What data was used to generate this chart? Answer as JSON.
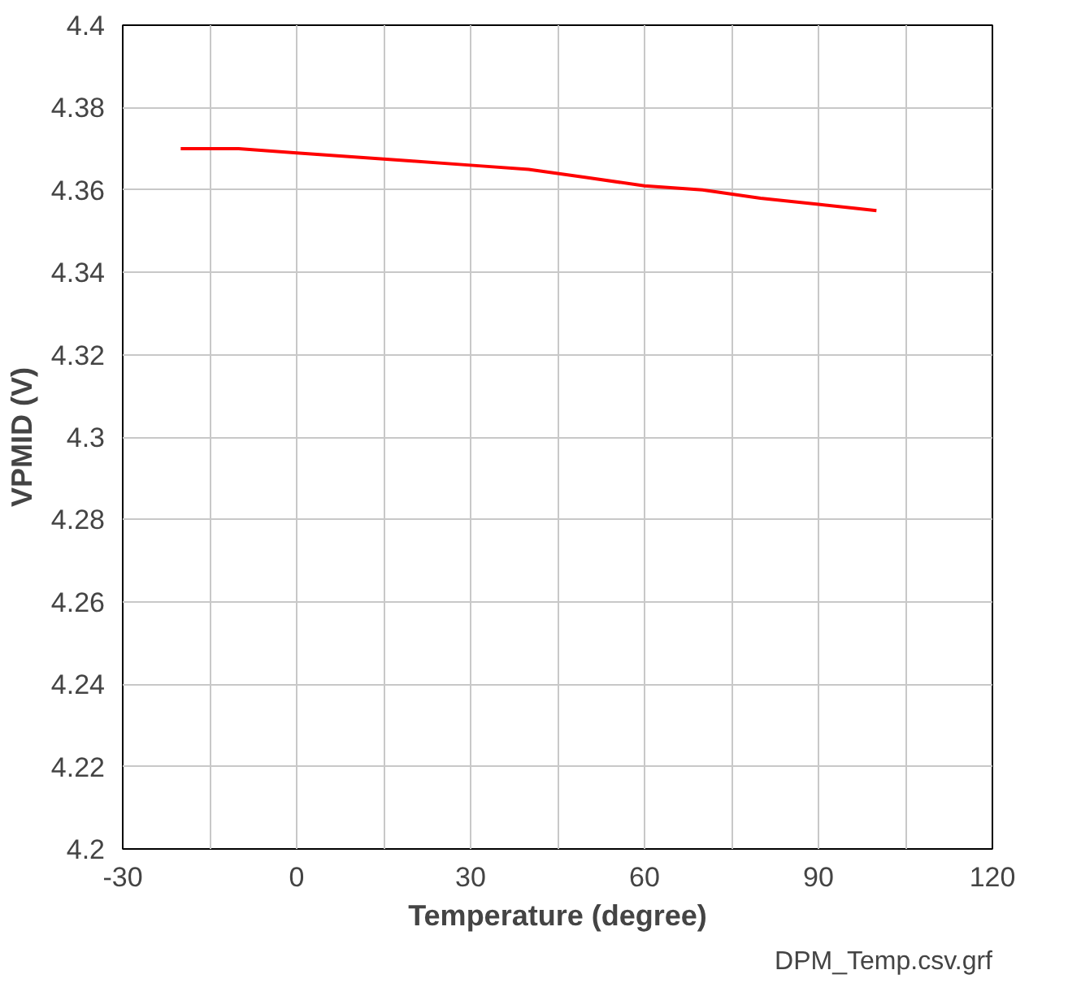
{
  "chart_data": {
    "type": "line",
    "xlabel": "Temperature (degree)",
    "ylabel": "VPMID (V)",
    "x": [
      -20,
      -10,
      0,
      10,
      20,
      30,
      40,
      50,
      60,
      70,
      80,
      90,
      100
    ],
    "series": [
      {
        "color": "#ff0000",
        "values": [
          4.37,
          4.37,
          4.369,
          4.368,
          4.367,
          4.366,
          4.365,
          4.363,
          4.361,
          4.36,
          4.358,
          4.3565,
          4.355
        ]
      }
    ],
    "xlim": [
      -30,
      120
    ],
    "xticks": [
      -30,
      {
        "value": -15,
        "label": null
      },
      0,
      {
        "value": 15,
        "label": null
      },
      30,
      {
        "value": 45,
        "label": null
      },
      60,
      {
        "value": 75,
        "label": null
      },
      90,
      {
        "value": 105,
        "label": null
      },
      120
    ],
    "ylim": [
      4.2,
      4.4
    ],
    "yticks": [
      4.2,
      4.22,
      4.24,
      4.26,
      4.28,
      4.3,
      4.32,
      4.34,
      4.36,
      4.38,
      4.4
    ],
    "grid": true,
    "marker": "none",
    "line_style": "solid",
    "annotations": [
      "DPM_Temp.csv.grf"
    ]
  }
}
